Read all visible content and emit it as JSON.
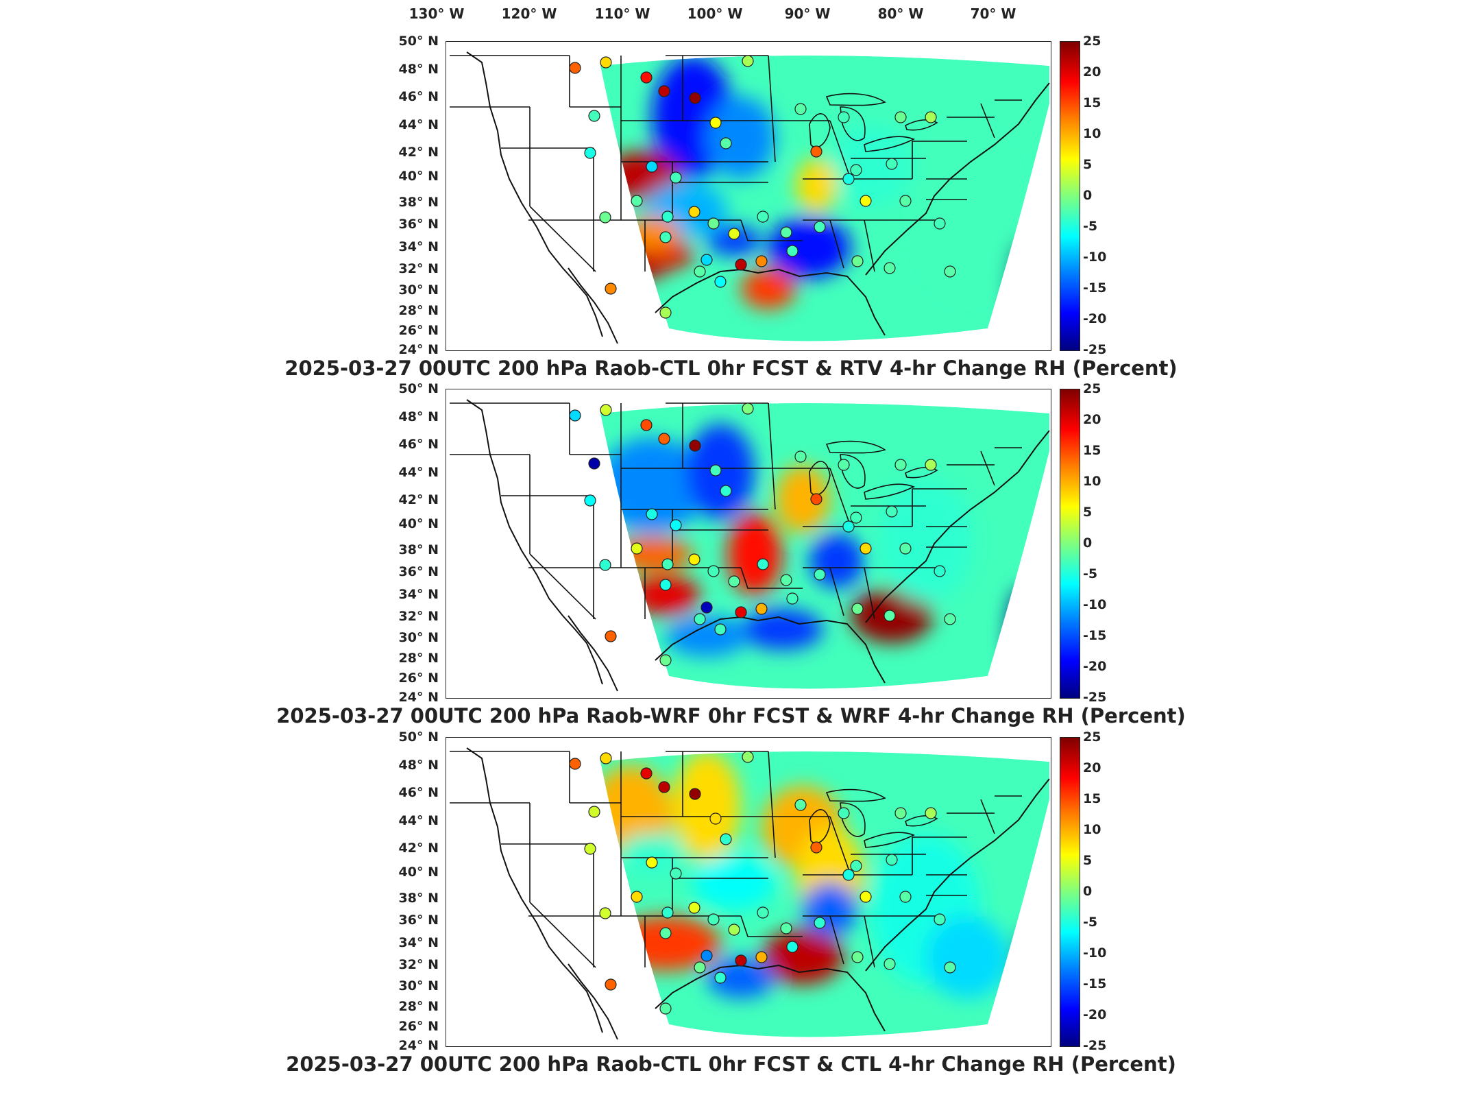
{
  "longitude_labels": [
    "130° W",
    "120° W",
    "110° W",
    "100° W",
    "90° W",
    "80° W",
    "70° W"
  ],
  "latitude_labels": [
    "50° N",
    "48° N",
    "46° N",
    "44° N",
    "42° N",
    "40° N",
    "38° N",
    "36° N",
    "34° N",
    "32° N",
    "30° N",
    "28° N",
    "26° N",
    "24° N"
  ],
  "colorbar": {
    "ticks": [
      "25",
      "20",
      "15",
      "10",
      "5",
      "0",
      "-5",
      "-10",
      "-15",
      "-20",
      "-25"
    ],
    "colormap": "jet",
    "range": [
      -25,
      25
    ]
  },
  "panels": [
    {
      "title": "2025-03-27 00UTC 200 hPa Raob-CTL 0hr FCST & RTV 4-hr Change RH (Percent)"
    },
    {
      "title": "2025-03-27 00UTC 200 hPa Raob-WRF 0hr FCST & WRF 4-hr Change RH (Percent)"
    },
    {
      "title": "2025-03-27 00UTC 200 hPa Raob-CTL 0hr FCST & CTL 4-hr Change RH (Percent)"
    }
  ]
}
